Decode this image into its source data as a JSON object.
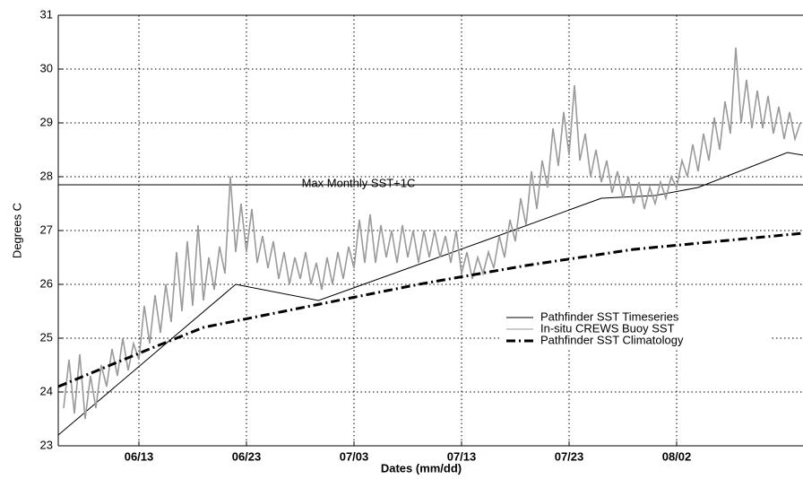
{
  "chart_data": {
    "type": "line",
    "xlabel": "Dates (mm/dd)",
    "ylabel": "Degrees C",
    "xlim": [
      156.5,
      225.75
    ],
    "ylim": [
      23,
      31
    ],
    "xticks": [
      {
        "value": 164,
        "label": "06/13"
      },
      {
        "value": 174,
        "label": "06/23"
      },
      {
        "value": 184,
        "label": "07/03"
      },
      {
        "value": 194,
        "label": "07/13"
      },
      {
        "value": 204,
        "label": "07/23"
      },
      {
        "value": 214,
        "label": "08/02"
      }
    ],
    "yticks": [
      23,
      24,
      25,
      26,
      27,
      28,
      29,
      30,
      31
    ],
    "grid": true,
    "legend": "right",
    "reference_line": {
      "value": 27.85,
      "label": "Max Monthly SST+1C"
    },
    "series": [
      {
        "name": "Pathfinder SST Timeseries",
        "color": "#000000",
        "style": "solid",
        "x": [
          156.5,
          173,
          180.7,
          196,
          207,
          212,
          216,
          224.3,
          225.75
        ],
        "values": [
          23.2,
          26.0,
          25.7,
          26.8,
          27.6,
          27.65,
          27.8,
          28.45,
          28.4
        ]
      },
      {
        "name": "In-situ CREWS Buoy SST",
        "color": "#9a9a9a",
        "style": "solid",
        "x": [
          157,
          157.5,
          158,
          158.5,
          159,
          159.5,
          160,
          160.5,
          161,
          161.5,
          162,
          162.5,
          163,
          163.5,
          164,
          164.5,
          165,
          165.5,
          166,
          166.5,
          167,
          167.5,
          168,
          168.5,
          169,
          169.5,
          170,
          170.5,
          171,
          171.5,
          172,
          172.5,
          173,
          173.5,
          174,
          174.5,
          175,
          175.5,
          176,
          176.5,
          177,
          177.5,
          178,
          178.5,
          179,
          179.5,
          180,
          180.5,
          181,
          181.5,
          182,
          182.5,
          183,
          183.5,
          184,
          184.5,
          185,
          185.5,
          186,
          186.5,
          187,
          187.5,
          188,
          188.5,
          189,
          189.5,
          190,
          190.5,
          191,
          191.5,
          192,
          192.5,
          193,
          193.5,
          194,
          194.5,
          195,
          195.5,
          196,
          196.5,
          197,
          197.5,
          198,
          198.5,
          199,
          199.5,
          200,
          200.5,
          201,
          201.5,
          202,
          202.5,
          203,
          203.5,
          204,
          204.5,
          205,
          205.5,
          206,
          206.5,
          207,
          207.5,
          208,
          208.5,
          209,
          209.5,
          210,
          210.5,
          211,
          211.5,
          212,
          212.5,
          213,
          213.5,
          214,
          214.5,
          215,
          215.5,
          216,
          216.5,
          217,
          217.5,
          218,
          218.5,
          219,
          219.5,
          220,
          220.5,
          221,
          221.5,
          222,
          222.5,
          223,
          223.5,
          224,
          224.5,
          225,
          225.5
        ],
        "values": [
          23.7,
          24.6,
          23.6,
          24.7,
          23.5,
          24.3,
          23.7,
          24.5,
          24.1,
          24.8,
          24.3,
          25.0,
          24.4,
          24.9,
          24.6,
          25.6,
          24.9,
          25.8,
          25.1,
          26.0,
          25.3,
          26.6,
          25.5,
          26.8,
          25.6,
          27.1,
          25.7,
          26.5,
          25.9,
          26.7,
          26.2,
          28.0,
          26.6,
          27.5,
          26.6,
          27.4,
          26.4,
          26.9,
          26.3,
          26.8,
          26.1,
          26.6,
          26.0,
          26.5,
          26.1,
          26.6,
          26.0,
          26.4,
          25.9,
          26.5,
          26.0,
          26.6,
          26.1,
          26.7,
          26.3,
          27.2,
          26.4,
          27.3,
          26.4,
          27.1,
          26.5,
          27.0,
          26.4,
          27.1,
          26.5,
          27.0,
          26.4,
          27.0,
          26.5,
          27.0,
          26.5,
          26.9,
          26.4,
          27.0,
          26.2,
          26.6,
          26.1,
          26.5,
          26.2,
          26.6,
          26.3,
          26.9,
          26.5,
          27.2,
          26.8,
          27.6,
          27.1,
          28.1,
          27.4,
          28.3,
          27.8,
          28.9,
          28.2,
          29.2,
          28.4,
          29.7,
          28.3,
          28.8,
          28.0,
          28.5,
          27.9,
          28.3,
          27.7,
          28.1,
          27.6,
          28.0,
          27.5,
          27.9,
          27.4,
          27.8,
          27.5,
          27.9,
          27.6,
          28.0,
          27.8,
          28.3,
          28.0,
          28.6,
          28.1,
          28.8,
          28.3,
          29.1,
          28.5,
          29.4,
          28.8,
          30.4,
          29.0,
          29.8,
          28.9,
          29.6,
          28.9,
          29.5,
          28.8,
          29.3,
          28.7,
          29.2,
          28.7,
          29.0
        ]
      },
      {
        "name": "Pathfinder SST Climatology",
        "color": "#000000",
        "style": "dashdot",
        "x": [
          156.5,
          165,
          170,
          180,
          190,
          200,
          210,
          225.75
        ],
        "values": [
          24.1,
          24.8,
          25.2,
          25.6,
          26.0,
          26.35,
          26.65,
          26.95
        ]
      }
    ]
  }
}
